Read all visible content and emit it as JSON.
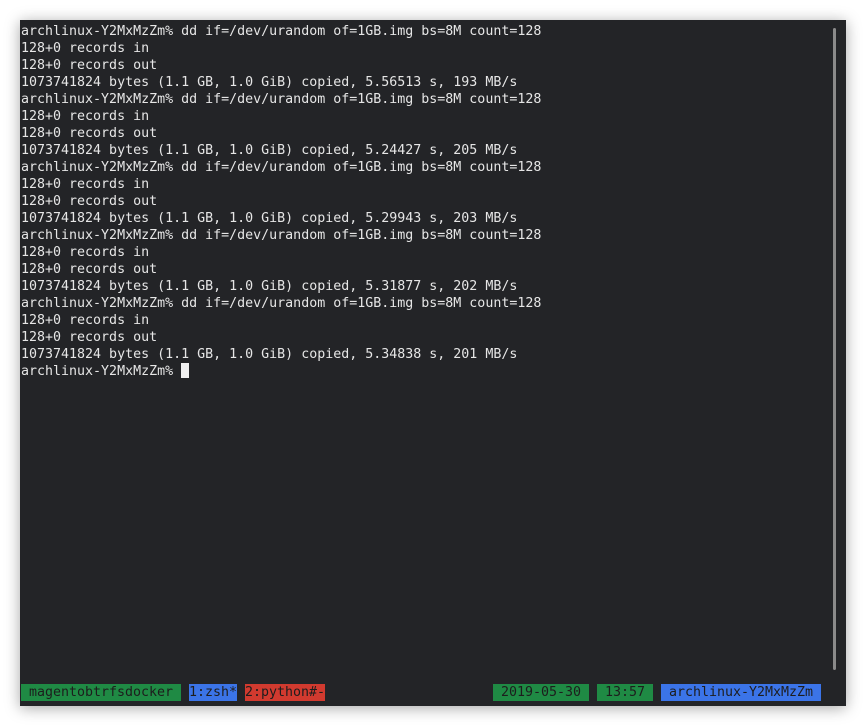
{
  "terminal": {
    "lines": [
      "archlinux-Y2MxMzZm% dd if=/dev/urandom of=1GB.img bs=8M count=128",
      "128+0 records in",
      "128+0 records out",
      "1073741824 bytes (1.1 GB, 1.0 GiB) copied, 5.56513 s, 193 MB/s",
      "archlinux-Y2MxMzZm% dd if=/dev/urandom of=1GB.img bs=8M count=128",
      "128+0 records in",
      "128+0 records out",
      "1073741824 bytes (1.1 GB, 1.0 GiB) copied, 5.24427 s, 205 MB/s",
      "archlinux-Y2MxMzZm% dd if=/dev/urandom of=1GB.img bs=8M count=128",
      "128+0 records in",
      "128+0 records out",
      "1073741824 bytes (1.1 GB, 1.0 GiB) copied, 5.29943 s, 203 MB/s",
      "archlinux-Y2MxMzZm% dd if=/dev/urandom of=1GB.img bs=8M count=128",
      "128+0 records in",
      "128+0 records out",
      "1073741824 bytes (1.1 GB, 1.0 GiB) copied, 5.31877 s, 202 MB/s",
      "archlinux-Y2MxMzZm% dd if=/dev/urandom of=1GB.img bs=8M count=128",
      "128+0 records in",
      "128+0 records out",
      "1073741824 bytes (1.1 GB, 1.0 GiB) copied, 5.34838 s, 201 MB/s"
    ],
    "prompt": "archlinux-Y2MxMzZm% "
  },
  "statusbar": {
    "session": "magentobtrfsdocker",
    "windows": [
      {
        "label": "1:zsh*",
        "color": "#3b74e8"
      },
      {
        "label": "2:python#-",
        "color": "#d13a2f"
      }
    ],
    "date": "2019-05-30",
    "time": "13:57",
    "host": "archlinux-Y2MxMzZm"
  },
  "colors": {
    "background": "#232427",
    "green": "#1f8a44",
    "blue": "#3b74e8",
    "red": "#d13a2f"
  }
}
